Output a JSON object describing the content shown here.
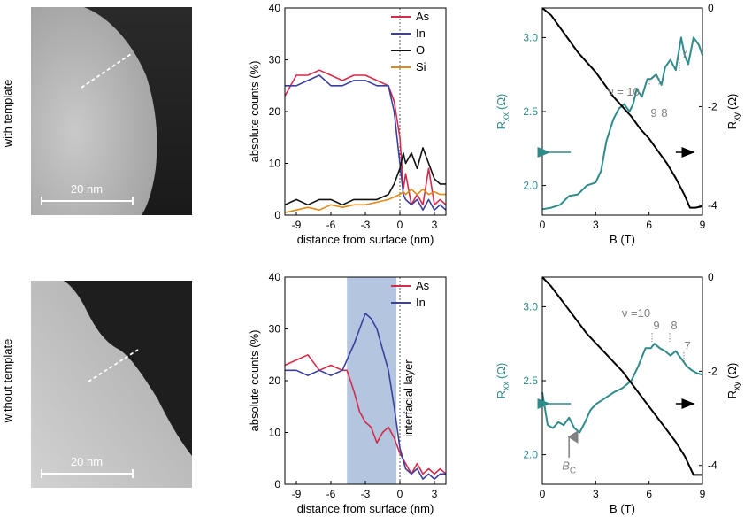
{
  "rows": [
    {
      "label": "with template"
    },
    {
      "label": "without template"
    }
  ],
  "images": [
    {
      "scalebar_label": "20 nm"
    },
    {
      "scalebar_label": "20 nm"
    }
  ],
  "colors": {
    "As": "#d62b4b",
    "In": "#3b3fa0",
    "O": "#111111",
    "Si": "#e08a16",
    "Rxx": "#2f8a8a",
    "Rxy": "#000000",
    "annotation": "#808080",
    "interfacial": "#a7bcd9"
  },
  "chart_data": [
    {
      "id": "profile-top",
      "type": "line",
      "xlabel": "distance from surface (nm)",
      "ylabel": "absolute counts (%)",
      "xlim": [
        -10,
        4
      ],
      "ylim": [
        0,
        40
      ],
      "xticks": [
        -9,
        -6,
        -3,
        0,
        3
      ],
      "yticks": [
        0,
        10,
        20,
        30,
        40
      ],
      "legend": "top-right",
      "series": [
        {
          "name": "As",
          "x": [
            -10,
            -9,
            -8,
            -7,
            -6,
            -5,
            -4,
            -3,
            -2,
            -1,
            -0.5,
            0,
            0.3,
            0.5,
            1,
            1.5,
            2,
            2.5,
            3,
            3.5,
            4
          ],
          "y": [
            23,
            27,
            27,
            28,
            27,
            26,
            27,
            27,
            26,
            25,
            22,
            15,
            5,
            8,
            2,
            4,
            2,
            9,
            2,
            3,
            2
          ]
        },
        {
          "name": "In",
          "x": [
            -10,
            -9,
            -8,
            -7,
            -6,
            -5,
            -4,
            -3,
            -2,
            -1,
            -0.5,
            0,
            0.3,
            0.5,
            1,
            1.5,
            2,
            2.5,
            3,
            3.5,
            4
          ],
          "y": [
            25,
            25,
            26,
            27,
            25,
            25,
            26,
            26,
            25,
            25,
            20,
            10,
            4,
            3,
            2,
            3,
            1,
            3,
            1,
            2,
            1
          ]
        },
        {
          "name": "O",
          "x": [
            -10,
            -9,
            -8,
            -7,
            -6,
            -5,
            -4,
            -3,
            -2,
            -1,
            -0.5,
            0,
            0.3,
            0.5,
            1,
            1.5,
            2,
            2.5,
            3,
            3.5,
            4
          ],
          "y": [
            2,
            3,
            2,
            3,
            3,
            2,
            3,
            3,
            3,
            4,
            6,
            9,
            12,
            10,
            12,
            9,
            13,
            10,
            7,
            6,
            6
          ]
        },
        {
          "name": "Si",
          "x": [
            -10,
            -9,
            -8,
            -7,
            -6,
            -5,
            -4,
            -3,
            -2,
            -1,
            -0.5,
            0,
            0.3,
            0.5,
            1,
            1.5,
            2,
            2.5,
            3,
            3.5,
            4
          ],
          "y": [
            0.5,
            1,
            1.5,
            1,
            2,
            1.5,
            2,
            2,
            2.5,
            3,
            3.5,
            4,
            4.5,
            4,
            5,
            4,
            5,
            4,
            4.5,
            4,
            4
          ]
        }
      ]
    },
    {
      "id": "magneto-top",
      "type": "line",
      "xlabel": "B (T)",
      "ylabel_left": "R",
      "ylabel_left_sub": "xx",
      "ylabel_left_unit": "(Ω)",
      "ylabel_right": "R",
      "ylabel_right_sub": "xy",
      "ylabel_right_unit": "(Ω)",
      "xlim": [
        0,
        9
      ],
      "ylim_left": [
        1.8,
        3.2
      ],
      "ylim_right": [
        -4.2,
        0
      ],
      "xticks": [
        0,
        3,
        6,
        9
      ],
      "yticks_left": [
        2.0,
        2.5,
        3.0
      ],
      "yticks_left_labels": [
        "2.0",
        "2.5",
        "3.0"
      ],
      "yticks_right": [
        -4,
        -2,
        0
      ],
      "yticks_right_labels": [
        "-4",
        "-2",
        "0"
      ],
      "series": [
        {
          "name": "Rxx",
          "axis": "left",
          "x": [
            0,
            0.5,
            1,
            1.5,
            2,
            2.5,
            3,
            3.3,
            3.6,
            4,
            4.3,
            4.6,
            4.9,
            5.1,
            5.3,
            5.6,
            5.9,
            6.1,
            6.4,
            6.7,
            6.9,
            7.2,
            7.5,
            7.8,
            8.0,
            8.2,
            8.5,
            8.8,
            9
          ],
          "y": [
            1.84,
            1.85,
            1.87,
            1.93,
            1.94,
            2.0,
            2.02,
            2.1,
            2.3,
            2.45,
            2.52,
            2.55,
            2.5,
            2.55,
            2.65,
            2.6,
            2.72,
            2.72,
            2.75,
            2.68,
            2.8,
            2.85,
            2.78,
            3.0,
            2.88,
            2.82,
            3.0,
            2.95,
            2.88
          ]
        },
        {
          "name": "Rxy",
          "axis": "right",
          "x": [
            0,
            0.5,
            1,
            1.5,
            2,
            2.5,
            3,
            3.5,
            4,
            4.5,
            5,
            5.5,
            6,
            6.5,
            7,
            7.5,
            8,
            8.3,
            8.6,
            9
          ],
          "y": [
            0,
            -0.15,
            -0.4,
            -0.65,
            -0.9,
            -1.1,
            -1.3,
            -1.55,
            -1.8,
            -2.0,
            -2.2,
            -2.45,
            -2.65,
            -2.9,
            -3.15,
            -3.45,
            -3.8,
            -4.05,
            -4.05,
            -4.02
          ]
        }
      ],
      "annotations": {
        "nu": "ν = 10",
        "n9": "9",
        "n8": "8",
        "n7": "7"
      }
    },
    {
      "id": "profile-bottom",
      "type": "line",
      "xlabel": "distance from surface (nm)",
      "ylabel": "absolute counts (%)",
      "xlim": [
        -10,
        4
      ],
      "ylim": [
        0,
        40
      ],
      "xticks": [
        -9,
        -6,
        -3,
        0,
        3
      ],
      "yticks": [
        0,
        10,
        20,
        30,
        40
      ],
      "legend": "top-right",
      "shaded_region": [
        -4.6,
        -0.3
      ],
      "shaded_label": "interfacial layer",
      "series": [
        {
          "name": "As",
          "x": [
            -10,
            -9,
            -8,
            -7,
            -6,
            -5,
            -4.6,
            -4,
            -3.5,
            -3,
            -2.5,
            -2,
            -1.5,
            -1,
            -0.5,
            0,
            0.5,
            1,
            1.5,
            2,
            2.5,
            3,
            3.5,
            4
          ],
          "y": [
            23,
            24,
            25,
            22,
            23,
            22,
            22,
            18,
            14,
            12,
            11,
            8,
            10,
            11,
            9,
            6,
            4,
            2,
            4,
            2,
            3,
            2,
            3,
            2
          ]
        },
        {
          "name": "In",
          "x": [
            -10,
            -9,
            -8,
            -7,
            -6,
            -5,
            -4.6,
            -4,
            -3.5,
            -3,
            -2.5,
            -2,
            -1.5,
            -1,
            -0.5,
            0,
            0.5,
            1,
            1.5,
            2,
            2.5,
            3,
            3.5,
            4
          ],
          "y": [
            22,
            22,
            21,
            22,
            21,
            22,
            24,
            27,
            30,
            33,
            32,
            30,
            26,
            22,
            15,
            7,
            3,
            2,
            3,
            1,
            2,
            1,
            2,
            2
          ]
        }
      ]
    },
    {
      "id": "magneto-bottom",
      "type": "line",
      "xlabel": "B (T)",
      "ylabel_left": "R",
      "ylabel_left_sub": "xx",
      "ylabel_left_unit": "(Ω)",
      "ylabel_right": "R",
      "ylabel_right_sub": "xy",
      "ylabel_right_unit": "(Ω)",
      "xlim": [
        0,
        9
      ],
      "ylim_left": [
        1.8,
        3.2
      ],
      "ylim_right": [
        -4.4,
        0
      ],
      "xticks": [
        0,
        3,
        6,
        9
      ],
      "yticks_left": [
        2.0,
        2.5,
        3.0
      ],
      "yticks_left_labels": [
        "2.0",
        "2.5",
        "3.0"
      ],
      "yticks_right": [
        -4,
        -2,
        0
      ],
      "yticks_right_labels": [
        "-4",
        "-2",
        "0"
      ],
      "series": [
        {
          "name": "Rxx",
          "axis": "left",
          "x": [
            0,
            0.3,
            0.6,
            0.9,
            1.2,
            1.5,
            1.8,
            2.1,
            2.4,
            2.7,
            3.0,
            3.5,
            4.0,
            4.5,
            5.0,
            5.4,
            5.8,
            6.1,
            6.3,
            6.6,
            6.9,
            7.2,
            7.5,
            7.8,
            8.1,
            8.4,
            8.7,
            9
          ],
          "y": [
            2.42,
            2.2,
            2.18,
            2.22,
            2.2,
            2.25,
            2.18,
            2.15,
            2.22,
            2.3,
            2.34,
            2.38,
            2.42,
            2.45,
            2.5,
            2.6,
            2.72,
            2.72,
            2.75,
            2.72,
            2.7,
            2.67,
            2.7,
            2.65,
            2.6,
            2.57,
            2.55,
            2.54
          ]
        },
        {
          "name": "Rxy",
          "axis": "right",
          "x": [
            0,
            0.5,
            1,
            1.5,
            2,
            2.5,
            3,
            3.5,
            4,
            4.5,
            5,
            5.5,
            6,
            6.5,
            7,
            7.5,
            8,
            8.5,
            9
          ],
          "y": [
            0,
            -0.2,
            -0.45,
            -0.7,
            -0.95,
            -1.2,
            -1.4,
            -1.6,
            -1.8,
            -2.0,
            -2.25,
            -2.5,
            -2.75,
            -3.0,
            -3.25,
            -3.5,
            -3.8,
            -4.2,
            -4.2
          ]
        }
      ],
      "annotations": {
        "nu": "ν =10",
        "n9": "9",
        "n8": "8",
        "n7": "7",
        "bc": "B",
        "bc_sub": "C"
      }
    }
  ]
}
